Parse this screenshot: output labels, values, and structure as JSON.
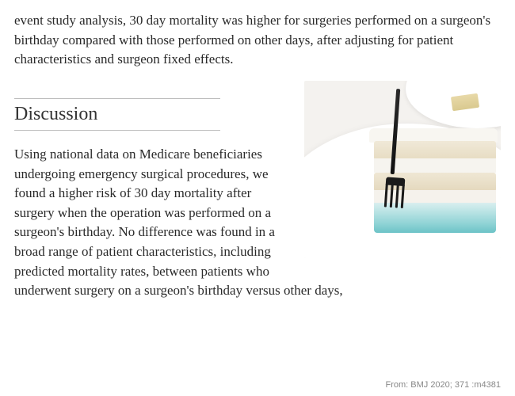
{
  "intro_paragraph": "event study analysis, 30 day mortality was higher for surgeries performed on a surgeon's birthday compared with those performed on other days, after adjusting for patient characteristics and surgeon fixed effects.",
  "section_heading": "Discussion",
  "discussion_paragraph": "Using national data on Medicare beneficiaries undergoing emergency surgical procedures, we found a higher risk of 30 day mortality after surgery when the operation was performed on a surgeon's birthday. No difference was found in a broad range of patient characteristics, including predicted mortality rates, between patients who underwent surgery on a surgeon's birthday versus other days,",
  "attribution": "From: BMJ 2020; 371 :m4381",
  "figure": {
    "description": "cake-slice-with-fork",
    "colors": {
      "background": "#f4f2ef",
      "plate": "#ffffff",
      "sponge_top": "#f0e9d8",
      "sponge_bottom": "#e4d8bd",
      "frosting": "#f6f4ef",
      "icing_base_light": "#d9efef",
      "icing_base_dark": "#6cc3c7",
      "fork": "#1a1a1a"
    }
  }
}
